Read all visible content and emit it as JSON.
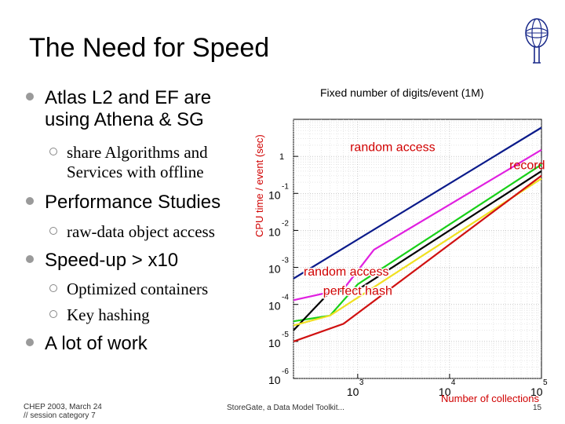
{
  "slide": {
    "title": "The Need for Speed",
    "bullets": [
      {
        "text_line1": "Atlas L2 and EF are",
        "text_line2": "using Athena & SG"
      },
      {
        "sub": {
          "line1": "share Algorithms and",
          "line2": "Services with offline"
        }
      },
      {
        "text": "Performance Studies"
      },
      {
        "sub": {
          "text": "raw-data object access"
        }
      },
      {
        "text": "Speed-up > x10"
      },
      {
        "sub": {
          "text": "Optimized containers"
        }
      },
      {
        "sub": {
          "text": "Key hashing"
        }
      },
      {
        "text": "A lot of work"
      }
    ],
    "footer": {
      "left_line1": "CHEP 2003, March 24",
      "left_line2": "// session category 7",
      "center": "StoreGate, a Data Model Toolkit...",
      "page": "15"
    },
    "colors": {
      "accent_red": "#d00000",
      "bullet_gray": "#9a9a9a"
    }
  },
  "chart_data": {
    "type": "line",
    "title": "Fixed number of digits/event (1M)",
    "xlabel": "Number of collections",
    "ylabel": "CPU time / event (sec)",
    "x_scale": "log",
    "y_scale": "log",
    "xlim": [
      200,
      100000
    ],
    "ylim": [
      1e-06,
      10
    ],
    "x_ticks": [
      {
        "base": "10",
        "exp": "3",
        "v": 1000
      },
      {
        "base": "10",
        "exp": "4",
        "v": 10000
      },
      {
        "base": "10",
        "exp": "5",
        "v": 100000
      }
    ],
    "y_ticks": [
      {
        "base": "",
        "exp": "",
        "label": "1",
        "v": 1
      },
      {
        "base": "10",
        "exp": "-1",
        "v": 0.1
      },
      {
        "base": "10",
        "exp": "-2",
        "v": 0.01
      },
      {
        "base": "10",
        "exp": "-3",
        "v": 0.001
      },
      {
        "base": "10",
        "exp": "-4",
        "v": 0.0001
      },
      {
        "base": "10",
        "exp": "-5",
        "v": 1e-05
      },
      {
        "base": "10",
        "exp": "-6",
        "v": 1e-06
      }
    ],
    "grid": true,
    "annotations": [
      {
        "text": "random access",
        "color": "#d00000"
      },
      {
        "text": "record",
        "color": "#d00000"
      },
      {
        "text": "random access",
        "color": "#d00000"
      },
      {
        "text": "perfect hash",
        "color": "#d00000"
      }
    ],
    "series": [
      {
        "color": "#0a1a8a",
        "x": [
          200,
          100000
        ],
        "y": [
          0.0005,
          6
        ]
      },
      {
        "color": "#e020e0",
        "x": [
          200,
          700,
          1500,
          100000
        ],
        "y": [
          0.00013,
          0.00026,
          0.003,
          1.5
        ]
      },
      {
        "color": "#18d018",
        "x": [
          200,
          500,
          1000,
          100000
        ],
        "y": [
          3.5e-05,
          5e-05,
          0.00035,
          0.6
        ]
      },
      {
        "color": "#000000",
        "x": [
          200,
          500,
          1000,
          100000
        ],
        "y": [
          2e-05,
          0.00022,
          0.00025,
          0.4
        ]
      },
      {
        "color": "#f0e020",
        "x": [
          200,
          500,
          100000
        ],
        "y": [
          2.7e-05,
          5e-05,
          0.25
        ]
      },
      {
        "color": "#d01010",
        "x": [
          200,
          700,
          100000
        ],
        "y": [
          1e-05,
          3e-05,
          0.3
        ]
      }
    ]
  }
}
